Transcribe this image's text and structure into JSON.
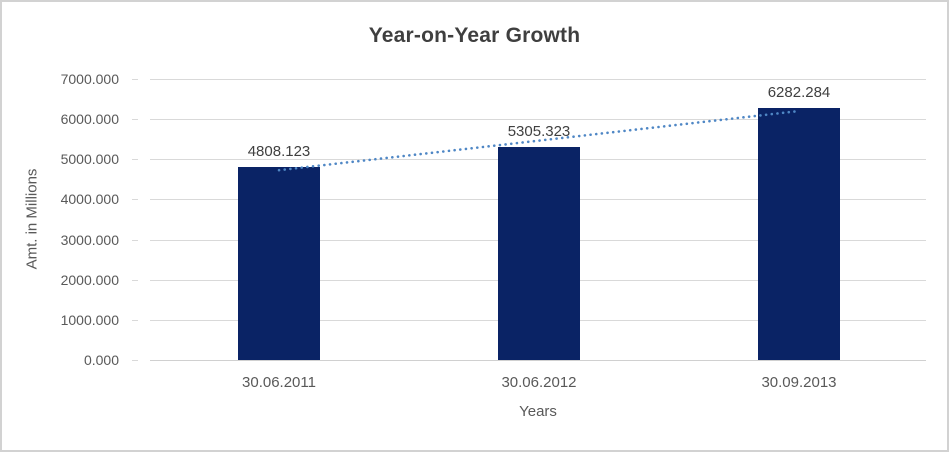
{
  "chart_data": {
    "type": "bar",
    "title": "Year-on-Year Growth",
    "xlabel": "Years",
    "ylabel": "Amt. in Millions",
    "categories": [
      "30.06.2011",
      "30.06.2012",
      "30.09.2013"
    ],
    "values": [
      4808.123,
      5305.323,
      6282.284
    ],
    "data_labels": [
      "4808.123",
      "5305.323",
      "6282.284"
    ],
    "ylim": [
      0,
      7000
    ],
    "ytick_step": 1000,
    "ytick_labels": [
      "0.000",
      "1000.000",
      "2000.000",
      "3000.000",
      "4000.000",
      "5000.000",
      "6000.000",
      "7000.000"
    ],
    "grid": true,
    "legend": "none",
    "trendline": {
      "type": "linear",
      "style": "dotted",
      "start_value": 4728.2,
      "end_value": 6202.3
    }
  },
  "colors": {
    "bar_fill": "#0a2365",
    "trendline": "#4f87c5",
    "gridline": "#d9d9d9",
    "title_text": "#3f3f3f",
    "axis_text": "#595959",
    "data_label_text": "#404040",
    "frame_border": "#d2d2d2",
    "background": "#ffffff"
  }
}
